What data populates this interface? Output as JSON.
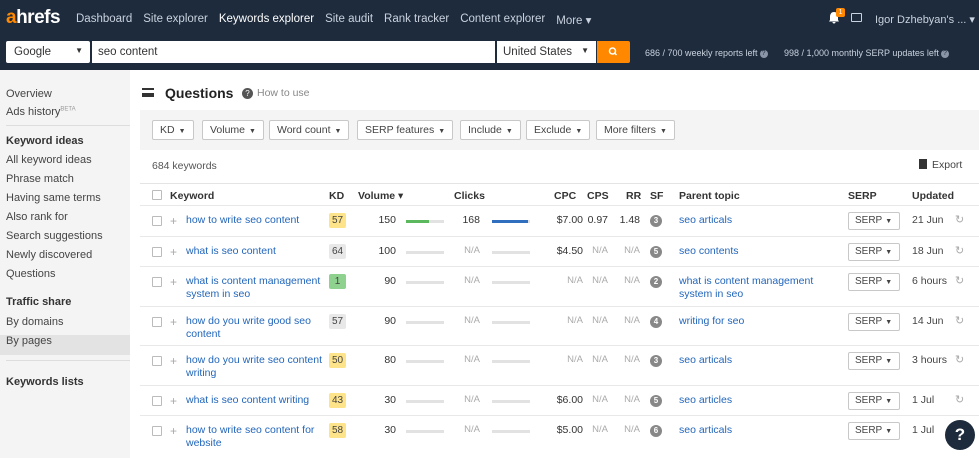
{
  "app": {
    "logo_a": "a",
    "logo_rest": "hrefs",
    "nav": [
      "Dashboard",
      "Site explorer",
      "Keywords explorer",
      "Site audit",
      "Rank tracker",
      "Content explorer",
      "More ▾"
    ],
    "notification_count": "1",
    "user_name": "Igor Dzhebyan's ... ▾"
  },
  "search": {
    "engine": "Google",
    "query": "seo content",
    "country": "United States",
    "quota_reports": "686 / 700 weekly reports left",
    "quota_serp": "998 / 1,000 monthly SERP updates left"
  },
  "sidebar": {
    "overview": "Overview",
    "ads_history": "Ads history",
    "ads_badge": "BETA",
    "keyword_ideas_title": "Keyword ideas",
    "keyword_ideas": [
      "All keyword ideas",
      "Phrase match",
      "Having same terms",
      "Also rank for",
      "Search suggestions",
      "Newly discovered",
      "Questions"
    ],
    "traffic_share_title": "Traffic share",
    "traffic_share": [
      "By domains",
      "By pages"
    ],
    "keywords_lists_title": "Keywords lists"
  },
  "page": {
    "title": "Questions",
    "how_to_use": "How to use",
    "filters": [
      "KD",
      "Volume",
      "Word count",
      "SERP features",
      "Include",
      "Exclude",
      "More filters"
    ],
    "keyword_count": "684 keywords",
    "export": "Export"
  },
  "table": {
    "headers": {
      "keyword": "Keyword",
      "kd": "KD",
      "volume": "Volume ▾",
      "clicks": "Clicks",
      "cpc": "CPC",
      "cps": "CPS",
      "rr": "RR",
      "sf": "SF",
      "parent": "Parent topic",
      "serp": "SERP",
      "updated": "Updated"
    },
    "serp_button": "SERP",
    "rows": [
      {
        "keyword": "how to write seo content",
        "kd": "57",
        "kd_color": "#fde38a",
        "volume": "150",
        "volume_bar": 0.6,
        "clicks": "168",
        "clicks_bar": 0.95,
        "cpc": "$7.00",
        "cps": "0.97",
        "rr": "1.48",
        "sf": "3",
        "parent": "seo articals",
        "updated": "21 Jun"
      },
      {
        "keyword": "what is seo content",
        "kd": "64",
        "kd_color": "#e8e8e8",
        "volume": "100",
        "volume_bar": 0.0,
        "clicks": "N/A",
        "clicks_bar": 0.0,
        "cpc": "$4.50",
        "cps": "N/A",
        "rr": "N/A",
        "sf": "5",
        "parent": "seo contents",
        "updated": "18 Jun"
      },
      {
        "keyword": "what is content management system in seo",
        "kd": "1",
        "kd_color": "#8fd18f",
        "volume": "90",
        "volume_bar": 0.0,
        "clicks": "N/A",
        "clicks_bar": 0.0,
        "cpc": "N/A",
        "cps": "N/A",
        "rr": "N/A",
        "sf": "2",
        "parent": "what is content management system in seo",
        "updated": "6 hours"
      },
      {
        "keyword": "how do you write good seo content",
        "kd": "57",
        "kd_color": "#e8e8e8",
        "volume": "90",
        "volume_bar": 0.0,
        "clicks": "N/A",
        "clicks_bar": 0.0,
        "cpc": "N/A",
        "cps": "N/A",
        "rr": "N/A",
        "sf": "4",
        "parent": "writing for seo",
        "updated": "14 Jun"
      },
      {
        "keyword": "how do you write seo content writing",
        "kd": "50",
        "kd_color": "#fde38a",
        "volume": "80",
        "volume_bar": 0.0,
        "clicks": "N/A",
        "clicks_bar": 0.0,
        "cpc": "N/A",
        "cps": "N/A",
        "rr": "N/A",
        "sf": "3",
        "parent": "seo articals",
        "updated": "3 hours"
      },
      {
        "keyword": "what is seo content writing",
        "kd": "43",
        "kd_color": "#fde38a",
        "volume": "30",
        "volume_bar": 0.0,
        "clicks": "N/A",
        "clicks_bar": 0.0,
        "cpc": "$6.00",
        "cps": "N/A",
        "rr": "N/A",
        "sf": "5",
        "parent": "seo articles",
        "updated": "1 Jul"
      },
      {
        "keyword": "how to write seo content for website",
        "kd": "58",
        "kd_color": "#fde38a",
        "volume": "30",
        "volume_bar": 0.0,
        "clicks": "N/A",
        "clicks_bar": 0.0,
        "cpc": "$5.00",
        "cps": "N/A",
        "rr": "N/A",
        "sf": "6",
        "parent": "seo articals",
        "updated": "1 Jul"
      }
    ]
  },
  "help": "?",
  "colors": {
    "nav_bg": "#1e2b3c",
    "accent": "#ff8800",
    "link": "#2266bb",
    "volume_bar": "#5cb85c",
    "clicks_bar": "#2f6fbd"
  }
}
